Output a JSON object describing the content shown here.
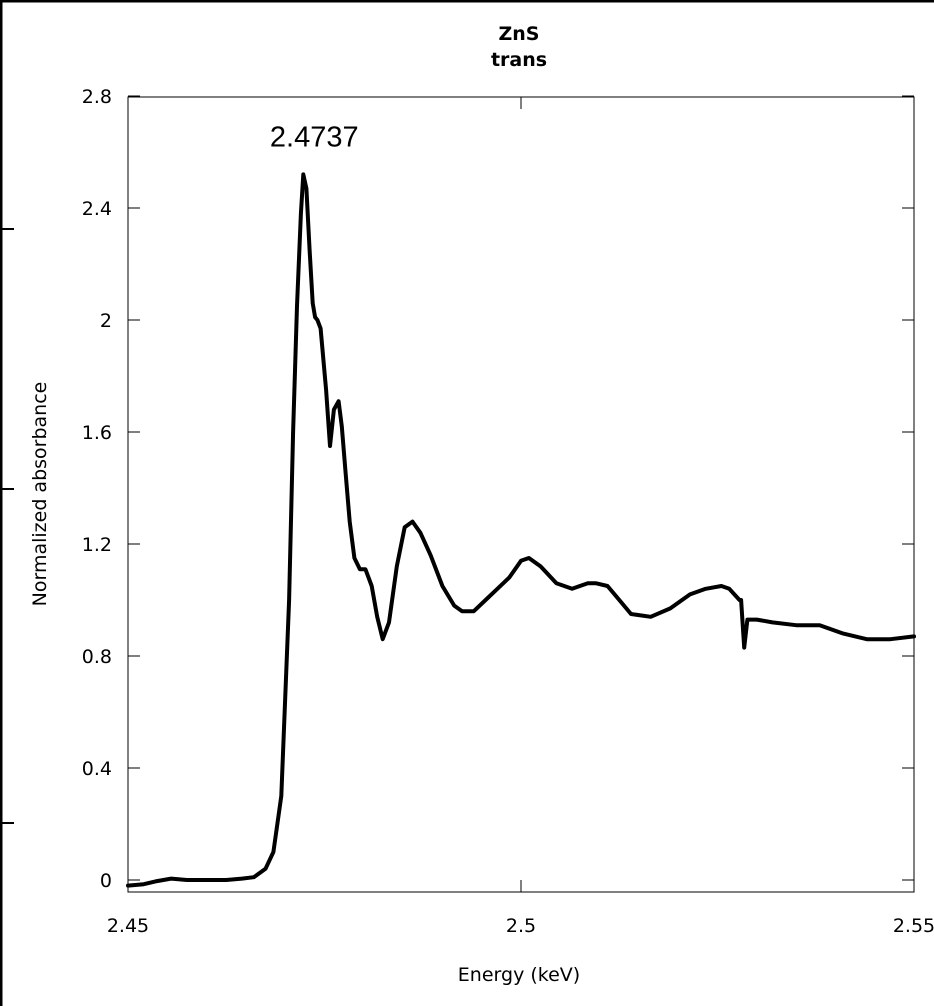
{
  "chart_data": {
    "type": "line",
    "title": "ZnS",
    "subtitle": "trans",
    "xlabel": "Energy (keV)",
    "ylabel": "Normalized absorbance",
    "xlim": [
      2.45,
      2.55
    ],
    "ylim": [
      -0.05,
      2.8
    ],
    "grid": false,
    "legend": "none",
    "line_color": "#000000",
    "x_ticks": [
      {
        "value": 2.45,
        "label": "2.45"
      },
      {
        "value": 2.5,
        "label": "2.5"
      },
      {
        "value": 2.55,
        "label": "2.55"
      }
    ],
    "y_ticks": [
      {
        "value": 0,
        "label": "0"
      },
      {
        "value": 0.4,
        "label": "0.4"
      },
      {
        "value": 0.8,
        "label": "0.8"
      },
      {
        "value": 1.2,
        "label": "1.2"
      },
      {
        "value": 1.6,
        "label": "1.6"
      },
      {
        "value": 2.0,
        "label": "2"
      },
      {
        "value": 2.4,
        "label": "2.4"
      },
      {
        "value": 2.8,
        "label": "2.8"
      }
    ],
    "annotations": [
      {
        "text": "2.4737",
        "x": 2.4737,
        "y": 2.62
      }
    ],
    "series": [
      {
        "x": [
          2.45,
          2.452,
          2.4535,
          2.4555,
          2.4575,
          2.46,
          2.4625,
          2.4645,
          2.466,
          2.4675,
          2.4685,
          2.4695,
          2.4705,
          2.471,
          2.4715,
          2.472,
          2.4723,
          2.4727,
          2.4731,
          2.4735,
          2.4738,
          2.4741,
          2.4745,
          2.4752,
          2.4757,
          2.4762,
          2.4768,
          2.4772,
          2.4777,
          2.4782,
          2.4788,
          2.4795,
          2.4802,
          2.481,
          2.4817,
          2.4824,
          2.4832,
          2.4842,
          2.4852,
          2.4862,
          2.4872,
          2.4885,
          2.49,
          2.4915,
          2.4925,
          2.494,
          2.4955,
          2.497,
          2.4985,
          2.5,
          2.501,
          2.5025,
          2.5045,
          2.5065,
          2.5075,
          2.5085,
          2.5095,
          2.511,
          2.5125,
          2.514,
          2.5165,
          2.519,
          2.5215,
          2.5235,
          2.5255,
          2.5265,
          2.5278,
          2.528,
          2.5284,
          2.5288,
          2.53,
          2.532,
          2.535,
          2.538,
          2.541,
          2.544,
          2.547,
          2.55
        ],
        "y": [
          -0.02,
          -0.015,
          -0.005,
          0.005,
          0.0,
          0.0,
          0.0,
          0.005,
          0.01,
          0.04,
          0.1,
          0.3,
          1.0,
          1.6,
          2.05,
          2.38,
          2.52,
          2.47,
          2.25,
          2.06,
          2.01,
          2.0,
          1.97,
          1.75,
          1.55,
          1.68,
          1.71,
          1.62,
          1.45,
          1.28,
          1.15,
          1.11,
          1.11,
          1.05,
          0.94,
          0.86,
          0.92,
          1.12,
          1.26,
          1.28,
          1.24,
          1.16,
          1.05,
          0.98,
          0.96,
          0.96,
          1.0,
          1.04,
          1.08,
          1.14,
          1.15,
          1.12,
          1.06,
          1.04,
          1.05,
          1.06,
          1.06,
          1.05,
          1.0,
          0.95,
          0.94,
          0.97,
          1.02,
          1.04,
          1.05,
          1.04,
          1.0,
          1.0,
          0.83,
          0.93,
          0.93,
          0.92,
          0.91,
          0.91,
          0.88,
          0.86,
          0.86,
          0.87
        ]
      }
    ]
  }
}
